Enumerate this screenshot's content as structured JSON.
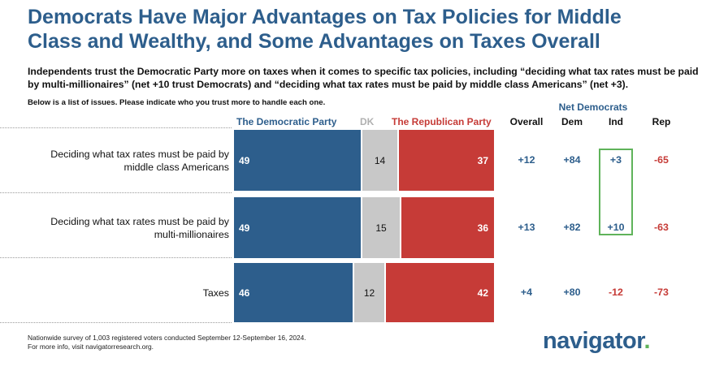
{
  "title": "Democrats Have Major Advantages on Tax Policies for Middle Class and Wealthy, and Some Advantages on Taxes Overall",
  "subtitle": "Independents trust the Democratic Party more on taxes when it comes to specific tax policies, including “deciding what tax rates must be paid by multi-millionaires” (net +10 trust Democrats) and “deciding what tax rates must be paid by middle class Americans” (net +3).",
  "question": "Below is a list of issues. Please indicate who you trust more to handle each one.",
  "legend": {
    "dem": "The Democratic Party",
    "dk": "DK",
    "rep": "The Republican Party"
  },
  "net_header": "Net Democrats",
  "columns": {
    "overall": "Overall",
    "dem": "Dem",
    "ind": "Ind",
    "rep": "Rep"
  },
  "colors": {
    "dem": "#2d5e8c",
    "dk": "#c8c8c8",
    "rep": "#c63b37",
    "highlight": "#5fb35a"
  },
  "chart_data": {
    "type": "bar",
    "stacked": true,
    "orientation": "horizontal",
    "categories": [
      "Deciding what tax rates must be paid by middle class Americans",
      "Deciding what tax rates must be paid by multi-millionaires",
      "Taxes"
    ],
    "series": [
      {
        "name": "The Democratic Party",
        "values": [
          49,
          49,
          46
        ]
      },
      {
        "name": "DK",
        "values": [
          14,
          15,
          12
        ]
      },
      {
        "name": "The Republican Party",
        "values": [
          37,
          36,
          42
        ]
      }
    ],
    "net": {
      "overall": [
        "+12",
        "+13",
        "+4"
      ],
      "dem": [
        "+84",
        "+82",
        "+80"
      ],
      "ind": [
        "+3",
        "+10",
        "-12"
      ],
      "rep": [
        "-65",
        "-63",
        "-73"
      ]
    },
    "highlight_column": "ind",
    "highlight_rows": [
      0,
      1
    ]
  },
  "footnote": {
    "line1": "Nationwide survey of 1,003 registered voters conducted September 12-September 16, 2024.",
    "line2": "For more info, visit navigatorresearch.org."
  },
  "logo": {
    "text": "navigator",
    "dot": "."
  }
}
